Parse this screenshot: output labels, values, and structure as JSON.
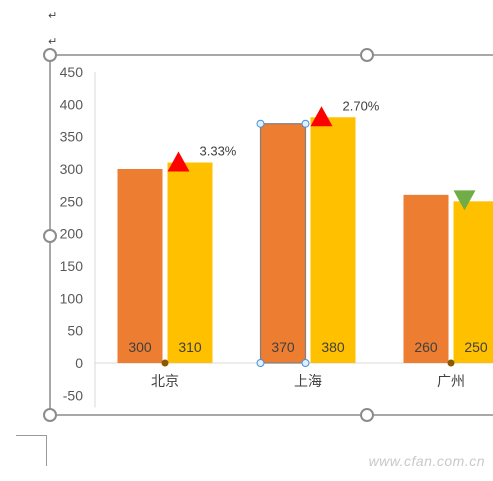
{
  "document": {
    "paragraph_marks": [
      "↵",
      "↵"
    ],
    "watermark": "www.cfan.com.cn"
  },
  "chart_data": {
    "type": "bar",
    "categories": [
      "北京",
      "上海",
      "广州"
    ],
    "series": [
      {
        "values": [
          300,
          370,
          260
        ],
        "color": "#ED7D31"
      },
      {
        "values": [
          310,
          380,
          250
        ],
        "color": "#FFC000"
      }
    ],
    "ylim": [
      -50,
      450
    ],
    "yticks": [
      -50,
      0,
      50,
      100,
      150,
      200,
      250,
      300,
      350,
      400,
      450
    ],
    "grid": false,
    "legend": "none",
    "annotations": [
      {
        "category": "北京",
        "direction": "up",
        "text": "3.33%",
        "color": "#FF0000"
      },
      {
        "category": "上海",
        "direction": "up",
        "text": "2.70%",
        "color": "#FF0000"
      },
      {
        "category": "广州",
        "direction": "down",
        "text": "",
        "color": "#70AD47"
      }
    ]
  }
}
